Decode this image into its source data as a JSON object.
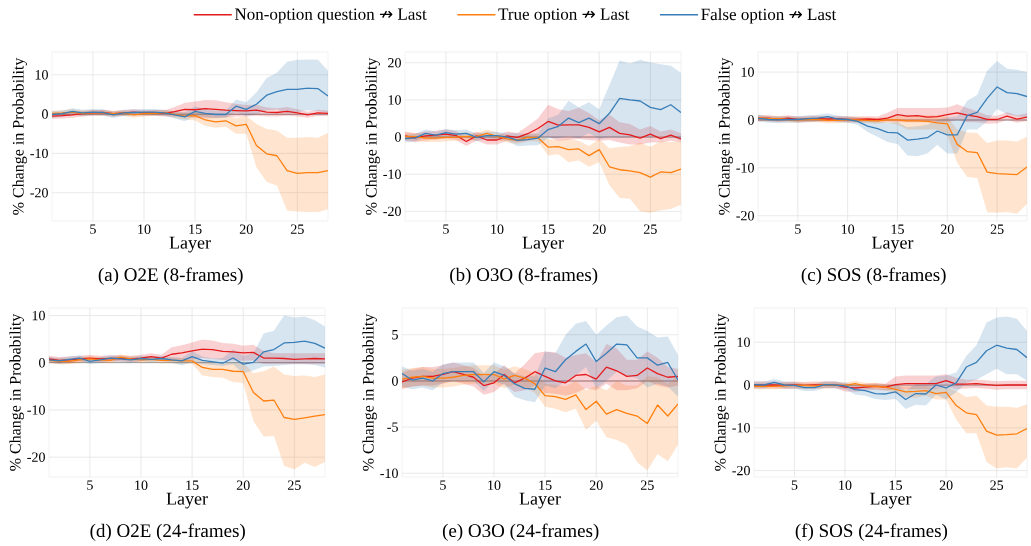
{
  "chart_data": [
    {
      "type": "line",
      "title": "(a) O2E (8-frames)",
      "xlabel": "Layer",
      "ylabel": "% Change in Probability",
      "legend": "top",
      "grid": true,
      "x": [
        1,
        2,
        3,
        4,
        5,
        6,
        7,
        8,
        9,
        10,
        11,
        12,
        13,
        14,
        15,
        16,
        17,
        18,
        19,
        20,
        21,
        22,
        23,
        24,
        25,
        26,
        27,
        28
      ],
      "xlim": [
        1,
        28
      ],
      "xticks": [
        5,
        10,
        15,
        20,
        25
      ],
      "ylim": [
        -27.2,
        15.8
      ],
      "yticks": [
        -20,
        -10,
        0,
        10
      ],
      "ref_lines": [
        {
          "axis": "y",
          "value": 0,
          "color": "#8c8c8c"
        }
      ],
      "series": [
        {
          "name": "Non-option question ↛ Last",
          "color": "#e41a1c",
          "values": [
            -0.5,
            -0.4,
            -0.2,
            0.1,
            0.3,
            0.4,
            0.1,
            0.3,
            0.5,
            0.3,
            0.3,
            0.2,
            0.6,
            1.2,
            1.1,
            1.4,
            1.2,
            1.0,
            0.9,
            0.8,
            1.0,
            0.5,
            0.4,
            0.7,
            0.3,
            -0.2,
            0.3,
            0.2
          ],
          "lower": [
            -1.2,
            -1.1,
            -0.9,
            -0.6,
            -0.4,
            -0.3,
            -0.6,
            -0.4,
            -0.2,
            -0.4,
            -0.4,
            -0.6,
            -0.6,
            -0.5,
            -1.0,
            -1.1,
            -1.0,
            -0.8,
            -0.6,
            -0.6,
            -0.4,
            -0.6,
            -0.6,
            -0.4,
            -0.6,
            -0.9,
            -0.5,
            -0.5
          ],
          "upper": [
            0.2,
            0.3,
            0.5,
            0.8,
            1.0,
            1.1,
            0.8,
            1.0,
            1.2,
            1.0,
            1.1,
            1.0,
            1.8,
            2.9,
            3.2,
            3.6,
            3.5,
            3.0,
            2.6,
            2.3,
            2.4,
            1.7,
            1.5,
            1.8,
            1.2,
            0.6,
            1.1,
            0.9
          ]
        },
        {
          "name": "True option ↛ Last",
          "color": "#ff7f0e",
          "values": [
            0.2,
            0.3,
            0.5,
            0.2,
            0.4,
            0.3,
            0.1,
            0.3,
            -0.2,
            0.1,
            0.2,
            0.4,
            -0.1,
            -0.5,
            -0.4,
            -1.5,
            -2.0,
            -1.7,
            -3.0,
            -2.6,
            -8.0,
            -10.1,
            -10.6,
            -14.4,
            -15.1,
            -14.9,
            -14.9,
            -14.4
          ],
          "lower": [
            -0.5,
            -0.4,
            -0.2,
            -0.5,
            -0.3,
            -0.4,
            -0.6,
            -0.4,
            -0.9,
            -0.6,
            -0.5,
            -0.3,
            -0.9,
            -1.4,
            -1.6,
            -3.0,
            -3.5,
            -3.2,
            -5.0,
            -5.0,
            -13.5,
            -17.3,
            -18.2,
            -24.6,
            -24.8,
            -24.9,
            -25.0,
            -24.2
          ],
          "upper": [
            0.9,
            1.0,
            1.2,
            0.9,
            1.1,
            1.0,
            0.8,
            1.0,
            0.5,
            0.8,
            0.9,
            1.1,
            0.6,
            0.4,
            0.6,
            0.0,
            -0.5,
            -0.3,
            -1.0,
            -0.5,
            -2.5,
            -3.8,
            -4.2,
            -6.0,
            -6.0,
            -5.8,
            -6.0,
            -4.8
          ]
        },
        {
          "name": "False option ↛ Last",
          "color": "#377eb8",
          "values": [
            -0.1,
            0.1,
            0.7,
            0.3,
            0.5,
            0.4,
            -0.2,
            0.3,
            0.4,
            0.5,
            0.5,
            0.3,
            -0.2,
            -0.7,
            0.7,
            0.2,
            -0.1,
            -0.1,
            2.0,
            1.2,
            2.5,
            4.8,
            5.7,
            6.3,
            6.3,
            6.6,
            6.5,
            4.6
          ],
          "lower": [
            -0.9,
            -0.7,
            -0.1,
            -0.5,
            -0.3,
            -0.4,
            -1.0,
            -0.5,
            -0.4,
            -0.3,
            -0.3,
            -0.5,
            -1.1,
            -1.8,
            -0.5,
            -0.8,
            -1.0,
            -1.0,
            0.5,
            -0.5,
            0.0,
            1.0,
            1.2,
            0.2,
            0.5,
            1.0,
            0.8,
            0.3
          ],
          "upper": [
            0.7,
            0.9,
            1.5,
            1.1,
            1.3,
            1.2,
            0.6,
            1.1,
            1.2,
            1.3,
            1.3,
            1.1,
            0.6,
            0.5,
            2.0,
            1.2,
            0.9,
            0.9,
            3.7,
            3.0,
            5.5,
            9.2,
            10.5,
            13.3,
            13.8,
            13.9,
            13.9,
            11.0
          ]
        }
      ]
    },
    {
      "type": "line",
      "title": "(b) O3O (8-frames)",
      "xlabel": "Layer",
      "ylabel": "% Change in Probability",
      "grid": true,
      "x": [
        1,
        2,
        3,
        4,
        5,
        6,
        7,
        8,
        9,
        10,
        11,
        12,
        13,
        14,
        15,
        16,
        17,
        18,
        19,
        20,
        21,
        22,
        23,
        24,
        25,
        26,
        27,
        28
      ],
      "xlim": [
        1,
        28
      ],
      "xticks": [
        5,
        10,
        15,
        20,
        25
      ],
      "ylim": [
        -22.6,
        22.9
      ],
      "yticks": [
        -20,
        -10,
        0,
        10,
        20
      ],
      "ref_lines": [
        {
          "axis": "y",
          "value": 0,
          "color": "#8c8c8c"
        }
      ],
      "series": [
        {
          "color": "#e41a1c",
          "values": [
            0.3,
            -0.2,
            0.3,
            0.5,
            0.8,
            0.4,
            -1.2,
            0.3,
            -0.8,
            -0.8,
            0.3,
            -0.1,
            0.9,
            2.3,
            4.2,
            3.2,
            3.3,
            3.3,
            2.6,
            1.4,
            2.6,
            1.0,
            0.6,
            -0.3,
            0.8,
            -0.4,
            0.5,
            -0.5
          ],
          "lower": [
            -0.9,
            -1.4,
            -0.9,
            -0.7,
            -0.4,
            -0.8,
            -2.4,
            -0.9,
            -2.0,
            -2.0,
            -0.9,
            -1.3,
            -1.0,
            0.0,
            0.0,
            -1.0,
            -0.7,
            -0.5,
            -0.8,
            -1.0,
            -0.8,
            -1.5,
            -2.0,
            -2.0,
            -1.5,
            -1.5,
            -1.0,
            -1.5
          ],
          "upper": [
            1.5,
            1.0,
            1.5,
            1.7,
            2.0,
            1.6,
            0.0,
            1.5,
            0.4,
            0.4,
            1.5,
            1.1,
            3.0,
            5.0,
            8.7,
            7.5,
            7.0,
            7.9,
            6.5,
            4.5,
            6.0,
            4.0,
            3.5,
            2.0,
            3.0,
            1.5,
            2.0,
            1.0
          ]
        },
        {
          "color": "#ff7f0e",
          "values": [
            0.2,
            0.1,
            -0.3,
            -0.3,
            -0.1,
            0.0,
            0.2,
            0.1,
            1.0,
            0.2,
            -0.5,
            -0.8,
            -0.1,
            -0.2,
            -2.7,
            -2.6,
            -3.4,
            -3.2,
            -5.0,
            -3.4,
            -8.0,
            -8.8,
            -9.1,
            -9.6,
            -10.8,
            -9.4,
            -9.6,
            -8.6
          ],
          "lower": [
            -0.8,
            -0.9,
            -1.3,
            -1.3,
            -1.1,
            -1.0,
            -0.8,
            -0.9,
            0.0,
            -0.8,
            -1.5,
            -1.8,
            -1.1,
            -1.2,
            -5.0,
            -4.6,
            -6.8,
            -6.3,
            -8.0,
            -6.8,
            -13.0,
            -16.4,
            -16.6,
            -20.0,
            -20.4,
            -19.7,
            -19.4,
            -18.2
          ],
          "upper": [
            1.2,
            1.1,
            0.7,
            0.7,
            0.9,
            1.0,
            1.2,
            1.1,
            2.0,
            1.2,
            0.5,
            0.2,
            0.9,
            0.8,
            -0.5,
            -0.8,
            -0.5,
            -1.0,
            -2.4,
            -0.5,
            -3.0,
            -2.7,
            -2.5,
            -1.5,
            -2.6,
            -1.2,
            -1.3,
            -1.2
          ]
        },
        {
          "color": "#377eb8",
          "values": [
            -0.4,
            -0.2,
            1.0,
            0.5,
            1.2,
            0.8,
            1.0,
            -0.1,
            0.4,
            0.4,
            0.0,
            -0.9,
            -0.7,
            -0.3,
            2.0,
            2.9,
            5.1,
            3.9,
            5.1,
            3.6,
            6.4,
            10.4,
            10.0,
            9.7,
            8.0,
            7.4,
            8.7,
            6.6
          ],
          "lower": [
            -1.4,
            -1.2,
            0.0,
            -0.5,
            0.2,
            -0.2,
            0.0,
            -1.1,
            -0.6,
            -0.6,
            -1.0,
            -2.5,
            -2.3,
            -2.2,
            -0.3,
            -0.3,
            0.3,
            -0.3,
            1.0,
            -0.6,
            0.0,
            -0.2,
            0.0,
            0.2,
            0.0,
            0.3,
            0.2,
            -1.0
          ],
          "upper": [
            0.6,
            0.8,
            2.0,
            1.5,
            2.2,
            1.8,
            2.0,
            0.9,
            1.4,
            1.4,
            1.0,
            1.0,
            0.8,
            1.0,
            5.0,
            6.0,
            9.8,
            8.0,
            9.4,
            7.5,
            14.0,
            20.6,
            19.8,
            20.8,
            20.1,
            19.6,
            19.2,
            17.3
          ]
        }
      ]
    },
    {
      "type": "line",
      "title": "(c) SOS (8-frames)",
      "xlabel": "Layer",
      "ylabel": "% Change in Probability",
      "grid": true,
      "x": [
        1,
        2,
        3,
        4,
        5,
        6,
        7,
        8,
        9,
        10,
        11,
        12,
        13,
        14,
        15,
        16,
        17,
        18,
        19,
        20,
        21,
        22,
        23,
        24,
        25,
        26,
        27,
        28
      ],
      "xlim": [
        1,
        28
      ],
      "xticks": [
        5,
        10,
        15,
        20,
        25
      ],
      "ylim": [
        -21.1,
        14.2
      ],
      "yticks": [
        -20,
        -10,
        0,
        10
      ],
      "ref_lines": [
        {
          "axis": "y",
          "value": 0,
          "color": "#8c8c8c"
        }
      ],
      "series": [
        {
          "color": "#e41a1c",
          "values": [
            0.3,
            0.4,
            0.1,
            0.4,
            0.1,
            0.2,
            0.3,
            0.2,
            0.3,
            0.1,
            0.1,
            0.2,
            0.1,
            0.4,
            1.1,
            0.8,
            0.9,
            0.6,
            0.7,
            1.1,
            1.5,
            1.0,
            0.7,
            0.1,
            0.1,
            0.8,
            0.2,
            0.6
          ],
          "lower": [
            -0.3,
            -0.2,
            -0.5,
            -0.2,
            -0.5,
            -0.4,
            -0.3,
            -0.4,
            -0.3,
            -0.5,
            -0.5,
            -0.4,
            -0.5,
            -0.3,
            -0.5,
            -0.5,
            -0.5,
            -0.5,
            -0.5,
            -0.5,
            0.0,
            -0.5,
            -0.5,
            -0.8,
            -0.7,
            0.0,
            -0.6,
            -0.2
          ],
          "upper": [
            0.9,
            1.0,
            0.7,
            1.0,
            0.7,
            0.8,
            0.9,
            0.8,
            0.9,
            0.7,
            0.7,
            0.8,
            0.7,
            1.5,
            2.5,
            2.5,
            2.5,
            2.5,
            2.5,
            2.6,
            3.3,
            2.5,
            1.8,
            1.0,
            0.9,
            1.6,
            1.0,
            1.4
          ]
        },
        {
          "color": "#ff7f0e",
          "values": [
            0.5,
            0.3,
            0.3,
            0.1,
            0.0,
            0.1,
            0.1,
            -0.1,
            -0.1,
            0.1,
            0.0,
            -0.1,
            -0.2,
            0.0,
            0.0,
            -0.2,
            -0.2,
            -0.3,
            -0.6,
            -0.8,
            -5.1,
            -6.6,
            -6.8,
            -10.9,
            -11.2,
            -11.3,
            -11.4,
            -9.8
          ],
          "lower": [
            -0.1,
            -0.3,
            -0.3,
            -0.5,
            -0.6,
            -0.5,
            -0.5,
            -0.7,
            -0.7,
            -0.5,
            -0.6,
            -0.7,
            -0.8,
            -0.6,
            -1.0,
            -2.0,
            -2.0,
            -2.0,
            -2.0,
            -3.2,
            -9.0,
            -11.9,
            -12.1,
            -19.3,
            -19.4,
            -19.2,
            -19.6,
            -17.5
          ],
          "upper": [
            1.1,
            0.9,
            0.9,
            0.7,
            0.6,
            0.7,
            0.7,
            0.5,
            0.5,
            0.7,
            0.6,
            0.5,
            0.4,
            0.6,
            0.8,
            1.0,
            1.0,
            1.0,
            1.0,
            0.6,
            -2.0,
            -2.6,
            -2.7,
            -4.8,
            -4.3,
            -4.3,
            -4.5,
            -3.5
          ]
        },
        {
          "color": "#377eb8",
          "values": [
            0.4,
            0.1,
            0.0,
            0.1,
            0.1,
            0.3,
            0.4,
            0.7,
            0.2,
            0.1,
            -0.3,
            -1.3,
            -1.8,
            -2.6,
            -2.7,
            -4.2,
            -4.0,
            -3.7,
            -2.3,
            -3.1,
            -3.1,
            0.9,
            1.6,
            4.5,
            6.9,
            5.7,
            5.5,
            4.9
          ],
          "lower": [
            -0.3,
            -0.6,
            -0.7,
            -0.6,
            -0.6,
            -0.4,
            -0.3,
            0.0,
            -0.5,
            -0.6,
            -1.0,
            -2.5,
            -3.5,
            -4.6,
            -5.0,
            -7.4,
            -7.6,
            -7.0,
            -5.2,
            -7.0,
            -7.0,
            -2.0,
            -2.0,
            -0.3,
            2.3,
            1.2,
            0.8,
            0.5
          ],
          "upper": [
            1.1,
            0.8,
            0.7,
            0.8,
            0.8,
            1.0,
            1.1,
            1.4,
            0.9,
            0.8,
            0.5,
            0.0,
            -0.3,
            -0.6,
            -0.5,
            -1.5,
            -1.3,
            -1.0,
            0.0,
            0.5,
            0.7,
            4.0,
            5.2,
            10.3,
            12.3,
            10.7,
            10.5,
            10.0
          ]
        }
      ]
    },
    {
      "type": "line",
      "title": "(d) O2E (24-frames)",
      "xlabel": "Layer",
      "ylabel": "% Change in Probability",
      "grid": true,
      "x": [
        1,
        2,
        3,
        4,
        5,
        6,
        7,
        8,
        9,
        10,
        11,
        12,
        13,
        14,
        15,
        16,
        17,
        18,
        19,
        20,
        21,
        22,
        23,
        24,
        25,
        26,
        27,
        28
      ],
      "xlim": [
        1,
        28
      ],
      "xticks": [
        5,
        10,
        15,
        20,
        25
      ],
      "ylim": [
        -24.2,
        11.6
      ],
      "yticks": [
        -20,
        -10,
        0,
        10
      ],
      "ref_lines": [
        {
          "axis": "y",
          "value": 0,
          "color": "#8c8c8c"
        }
      ],
      "series": [
        {
          "color": "#e41a1c",
          "values": [
            0.8,
            0.5,
            0.6,
            0.8,
            1.0,
            0.8,
            0.9,
            0.9,
            0.8,
            1.0,
            1.3,
            1.0,
            1.8,
            2.1,
            2.5,
            2.9,
            2.8,
            2.4,
            2.3,
            2.1,
            2.2,
            1.0,
            1.0,
            0.9,
            0.7,
            0.8,
            0.9,
            0.8
          ],
          "lower": [
            0.1,
            -0.2,
            -0.1,
            0.1,
            0.3,
            0.1,
            0.2,
            0.2,
            0.1,
            0.3,
            0.6,
            0.3,
            0.3,
            0.5,
            0.7,
            1.0,
            0.8,
            0.6,
            0.5,
            0.4,
            0.5,
            -0.3,
            -0.3,
            -0.3,
            -0.3,
            -0.3,
            -0.3,
            -0.3
          ],
          "upper": [
            1.5,
            1.2,
            1.3,
            1.5,
            1.7,
            1.5,
            1.6,
            1.6,
            1.5,
            1.7,
            2.0,
            1.7,
            3.3,
            3.7,
            4.3,
            4.9,
            4.7,
            4.2,
            4.0,
            3.6,
            3.8,
            2.5,
            2.0,
            2.0,
            2.0,
            2.0,
            2.0,
            2.0
          ]
        },
        {
          "color": "#ff7f0e",
          "values": [
            0.5,
            0.3,
            0.3,
            0.6,
            0.8,
            0.6,
            0.5,
            1.2,
            0.8,
            0.6,
            0.7,
            0.5,
            0.5,
            0.4,
            0.4,
            -1.0,
            -1.4,
            -1.4,
            -1.8,
            -1.9,
            -6.3,
            -8.1,
            -7.9,
            -11.6,
            -12.0,
            -11.7,
            -11.3,
            -11.0
          ],
          "lower": [
            -0.1,
            -0.3,
            -0.3,
            0.0,
            0.2,
            0.0,
            -0.1,
            0.6,
            0.2,
            0.0,
            0.1,
            -0.1,
            -0.1,
            -0.2,
            -0.2,
            -2.7,
            -3.0,
            -3.2,
            -4.1,
            -4.3,
            -12.4,
            -15.6,
            -15.5,
            -21.8,
            -22.6,
            -21.2,
            -22.1,
            -21.0
          ],
          "upper": [
            1.1,
            0.9,
            0.9,
            1.2,
            1.4,
            1.2,
            1.1,
            1.8,
            1.4,
            1.2,
            1.3,
            1.1,
            1.1,
            1.0,
            1.0,
            0.3,
            0.0,
            -0.2,
            0.1,
            0.0,
            -2.2,
            -1.8,
            -0.8,
            -2.5,
            -2.8,
            -2.7,
            -3.0,
            -2.5
          ]
        },
        {
          "color": "#377eb8",
          "values": [
            0.6,
            0.4,
            0.7,
            1.0,
            0.3,
            0.6,
            1.0,
            0.8,
            0.6,
            0.9,
            0.7,
            0.9,
            0.6,
            0.4,
            1.3,
            0.5,
            0.2,
            -0.1,
            1.0,
            -0.3,
            0.1,
            2.3,
            2.8,
            4.2,
            4.3,
            4.6,
            4.1,
            3.1
          ],
          "lower": [
            0.0,
            -0.2,
            0.1,
            0.4,
            -0.3,
            0.0,
            0.4,
            0.2,
            0.0,
            0.3,
            0.1,
            0.3,
            0.0,
            -0.6,
            0.2,
            -0.3,
            -0.5,
            -0.7,
            -0.3,
            -2.3,
            -1.6,
            -0.8,
            -0.7,
            -0.5,
            -0.3,
            -0.3,
            -0.5,
            -1.0
          ],
          "upper": [
            1.2,
            1.0,
            1.3,
            1.6,
            0.9,
            1.2,
            1.6,
            1.4,
            1.2,
            1.5,
            1.3,
            1.5,
            1.2,
            1.0,
            2.5,
            1.3,
            0.9,
            1.0,
            2.8,
            1.5,
            2.0,
            6.2,
            6.8,
            10.0,
            9.6,
            9.8,
            9.0,
            7.7
          ]
        }
      ]
    },
    {
      "type": "line",
      "title": "(e) O3O (24-frames)",
      "xlabel": "Layer",
      "ylabel": "% Change in Probability",
      "grid": true,
      "x": [
        1,
        2,
        3,
        4,
        5,
        6,
        7,
        8,
        9,
        10,
        11,
        12,
        13,
        14,
        15,
        16,
        17,
        18,
        19,
        20,
        21,
        22,
        23,
        24,
        25,
        26,
        27,
        28
      ],
      "xlim": [
        1,
        28
      ],
      "xticks": [
        5,
        10,
        15,
        20,
        25
      ],
      "ylim": [
        -10.4,
        7.9
      ],
      "yticks": [
        -10,
        -5,
        0,
        5
      ],
      "ref_lines": [
        {
          "axis": "y",
          "value": 0,
          "color": "#8c8c8c"
        }
      ],
      "series": [
        {
          "color": "#e41a1c",
          "values": [
            -0.1,
            0.3,
            0.5,
            0.5,
            0.7,
            1.0,
            0.7,
            0.4,
            -0.5,
            -0.2,
            0.7,
            -0.2,
            0.3,
            1.0,
            0.5,
            0.0,
            -0.2,
            0.6,
            0.7,
            0.2,
            1.5,
            1.1,
            0.5,
            0.6,
            1.4,
            0.8,
            0.4,
            0.5
          ],
          "lower": [
            -0.9,
            -0.6,
            -0.5,
            -0.5,
            -0.3,
            0.0,
            -0.3,
            -0.6,
            -1.5,
            -1.2,
            -0.3,
            -1.2,
            -1.0,
            -0.5,
            -1.3,
            -1.4,
            -1.6,
            -1.3,
            -0.8,
            -1.0,
            -0.3,
            -1.0,
            -1.0,
            -0.8,
            0.0,
            -0.5,
            -0.7,
            -0.5
          ],
          "upper": [
            0.9,
            1.3,
            1.5,
            1.5,
            1.7,
            2.0,
            1.7,
            1.4,
            0.5,
            0.8,
            1.7,
            0.8,
            1.8,
            3.0,
            3.2,
            3.1,
            2.5,
            2.8,
            3.0,
            2.0,
            4.0,
            3.5,
            2.3,
            2.3,
            3.2,
            2.5,
            1.5,
            1.3
          ]
        },
        {
          "color": "#ff7f0e",
          "values": [
            0.2,
            0.4,
            0.5,
            0.3,
            0.3,
            0.4,
            0.6,
            0.7,
            0.7,
            0.7,
            0.2,
            0.6,
            0.3,
            -0.3,
            -1.6,
            -1.7,
            -2.0,
            -1.5,
            -3.1,
            -2.2,
            -3.6,
            -3.1,
            -3.5,
            -3.8,
            -4.6,
            -2.6,
            -3.8,
            -2.5
          ],
          "lower": [
            -0.8,
            -0.6,
            -0.5,
            -0.7,
            -0.7,
            -0.6,
            -0.4,
            -0.3,
            -0.3,
            -0.3,
            -0.8,
            -0.4,
            -0.7,
            -1.3,
            -2.8,
            -3.0,
            -3.4,
            -3.0,
            -5.3,
            -4.3,
            -6.1,
            -6.4,
            -6.9,
            -8.8,
            -9.7,
            -7.9,
            -8.7,
            -6.9
          ],
          "upper": [
            1.2,
            1.4,
            1.5,
            1.3,
            1.3,
            1.4,
            1.6,
            1.7,
            1.7,
            1.7,
            1.2,
            1.6,
            1.3,
            0.8,
            -0.3,
            -0.4,
            -0.6,
            0.0,
            -1.0,
            -0.5,
            -1.0,
            0.0,
            -0.5,
            -0.5,
            0.5,
            0.4,
            -0.3,
            0.6
          ]
        },
        {
          "color": "#377eb8",
          "values": [
            0.8,
            0.1,
            0.3,
            0.0,
            0.8,
            1.0,
            1.0,
            1.0,
            -0.1,
            1.0,
            0.6,
            -0.3,
            -0.8,
            -0.9,
            1.4,
            1.0,
            2.3,
            3.2,
            4.0,
            2.1,
            3.0,
            4.0,
            3.9,
            2.5,
            2.5,
            1.7,
            2.0,
            0.1
          ],
          "lower": [
            -0.6,
            -0.9,
            -0.7,
            -1.0,
            -0.2,
            0.0,
            0.0,
            0.0,
            -1.1,
            0.0,
            -0.4,
            -1.7,
            -2.1,
            -2.3,
            -0.5,
            -0.8,
            0.0,
            0.6,
            1.5,
            -0.8,
            0.0,
            1.0,
            0.6,
            0.3,
            -0.7,
            -0.3,
            -0.6,
            -1.7
          ],
          "upper": [
            1.6,
            1.1,
            1.3,
            1.0,
            1.8,
            2.0,
            2.0,
            2.0,
            0.9,
            2.0,
            1.6,
            0.8,
            0.5,
            0.5,
            3.2,
            3.0,
            5.0,
            6.2,
            6.5,
            5.0,
            6.0,
            6.9,
            7.1,
            5.9,
            5.4,
            4.7,
            4.8,
            2.8
          ]
        }
      ]
    },
    {
      "type": "line",
      "title": "(f) SOS (24-frames)",
      "xlabel": "Layer",
      "ylabel": "% Change in Probability",
      "grid": true,
      "x": [
        1,
        2,
        3,
        4,
        5,
        6,
        7,
        8,
        9,
        10,
        11,
        12,
        13,
        14,
        15,
        16,
        17,
        18,
        19,
        20,
        21,
        22,
        23,
        24,
        25,
        26,
        27,
        28
      ],
      "xlim": [
        1,
        28
      ],
      "xticks": [
        5,
        10,
        15,
        20,
        25
      ],
      "ylim": [
        -21.5,
        18.0
      ],
      "yticks": [
        -20,
        -10,
        0,
        10
      ],
      "ref_lines": [
        {
          "axis": "y",
          "value": 0,
          "color": "#8c8c8c"
        }
      ],
      "series": [
        {
          "color": "#e41a1c",
          "values": [
            0.0,
            0.0,
            0.0,
            -0.1,
            0.0,
            -0.1,
            0.0,
            0.0,
            0.1,
            -0.5,
            -0.7,
            -0.5,
            -0.3,
            -0.5,
            0.1,
            0.3,
            0.3,
            0.3,
            0.3,
            1.0,
            0.2,
            0.2,
            0.3,
            0.1,
            -0.1,
            0.0,
            0.0,
            0.0
          ],
          "lower": [
            -0.8,
            -0.8,
            -0.8,
            -0.9,
            -0.8,
            -0.9,
            -0.8,
            -0.8,
            -0.7,
            -1.5,
            -1.6,
            -1.3,
            -1.1,
            -1.3,
            -1.0,
            -1.0,
            -1.0,
            -1.0,
            -1.0,
            -0.3,
            -1.0,
            -0.8,
            -0.7,
            -0.9,
            -1.1,
            -1.0,
            -1.0,
            -1.0
          ],
          "upper": [
            0.8,
            0.8,
            0.8,
            0.7,
            0.8,
            0.7,
            0.8,
            0.8,
            0.9,
            0.3,
            0.2,
            0.3,
            0.5,
            0.3,
            2.0,
            2.2,
            2.2,
            2.2,
            2.2,
            2.5,
            1.7,
            1.2,
            1.3,
            1.1,
            0.9,
            1.0,
            1.0,
            1.0
          ]
        },
        {
          "color": "#ff7f0e",
          "values": [
            -0.3,
            -0.3,
            -0.3,
            -0.2,
            -0.1,
            -0.1,
            -0.2,
            0.0,
            0.0,
            -0.1,
            0.3,
            -0.2,
            -0.3,
            -0.5,
            -1.0,
            -1.6,
            -1.5,
            -1.3,
            -2.0,
            -1.7,
            -4.8,
            -6.5,
            -6.9,
            -10.8,
            -11.7,
            -11.6,
            -11.4,
            -10.2
          ],
          "lower": [
            -1.0,
            -1.0,
            -1.0,
            -0.9,
            -0.8,
            -0.8,
            -0.9,
            -0.7,
            -0.7,
            -0.8,
            -0.4,
            -0.9,
            -1.0,
            -1.2,
            -2.0,
            -2.8,
            -3.0,
            -2.5,
            -3.4,
            -3.4,
            -8.1,
            -11.3,
            -11.3,
            -18.0,
            -19.5,
            -19.2,
            -19.5,
            -17.0
          ],
          "upper": [
            0.4,
            0.4,
            0.4,
            0.5,
            0.6,
            0.6,
            0.5,
            0.7,
            0.7,
            0.6,
            1.0,
            0.5,
            0.4,
            0.2,
            0.0,
            -0.4,
            -0.2,
            -0.2,
            -0.8,
            -0.4,
            -1.4,
            -2.8,
            -2.5,
            -4.8,
            -5.1,
            -5.1,
            -5.3,
            -4.5
          ]
        },
        {
          "color": "#377eb8",
          "values": [
            0.1,
            0.0,
            0.6,
            0.0,
            -0.1,
            -0.6,
            -0.6,
            0.1,
            0.0,
            -0.2,
            -1.1,
            -1.3,
            -2.0,
            -2.1,
            -1.6,
            -3.4,
            -2.0,
            -2.1,
            0.0,
            -0.7,
            0.5,
            4.2,
            5.3,
            8.0,
            9.3,
            8.6,
            8.3,
            6.4
          ],
          "lower": [
            -0.7,
            -0.8,
            -0.2,
            -0.8,
            -0.9,
            -1.4,
            -1.4,
            -0.7,
            -0.8,
            -1.0,
            -2.2,
            -2.5,
            -3.3,
            -3.5,
            -3.3,
            -5.6,
            -4.6,
            -4.8,
            -2.3,
            -3.4,
            -1.7,
            0.5,
            1.2,
            2.5,
            3.8,
            2.5,
            2.5,
            1.0
          ],
          "upper": [
            0.9,
            0.8,
            1.4,
            0.8,
            0.7,
            0.2,
            0.2,
            0.9,
            0.8,
            0.6,
            0.0,
            -0.2,
            -0.8,
            -0.8,
            0.2,
            -1.2,
            0.2,
            0.3,
            2.0,
            2.2,
            2.9,
            6.8,
            9.3,
            14.6,
            15.8,
            16.0,
            15.5,
            12.6
          ]
        }
      ]
    }
  ]
}
